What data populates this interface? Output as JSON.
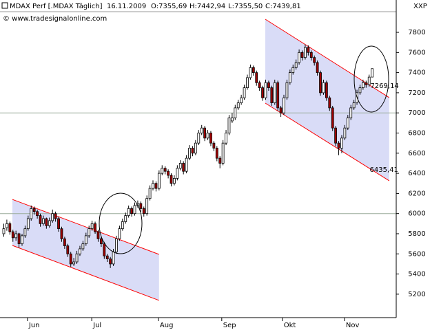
{
  "chart_data": {
    "type": "candlestick",
    "header": {
      "symbol": "MDAX Perf [.MDAX  Täglich]",
      "date": "16.11.2009",
      "open": "O:7355,69",
      "high": "H:7442,94",
      "low": "L:7355,50",
      "close": "C:7439,81"
    },
    "copyright": "© www.tradesignalonline.com",
    "axis_title": "XXP",
    "up_color": "#ffffff",
    "down_color": "#a00000",
    "ohlc_color": "#00a000",
    "xlim": [
      -1.13,
      129
    ],
    "ylim": [
      4967,
      8005
    ],
    "xticks": [
      {
        "value": 7.9,
        "label": "Jun"
      },
      {
        "value": 29,
        "label": "Jul"
      },
      {
        "value": 50.9,
        "label": "Aug"
      },
      {
        "value": 71.7,
        "label": "Sep"
      },
      {
        "value": 91.6,
        "label": "Okt"
      },
      {
        "value": 112,
        "label": "Nov"
      }
    ],
    "yticks": [
      5200,
      5400,
      5600,
      5800,
      6000,
      6200,
      6400,
      6600,
      6800,
      7000,
      7200,
      7400,
      7600,
      7800
    ],
    "hlines": [
      7000,
      6000
    ],
    "channel_fill": "#d9dcf7",
    "channel_line": "#ff0000",
    "channels": [
      {
        "x": [
          2.94,
          51.1
        ],
        "upper": [
          6141,
          5595
        ],
        "lower": [
          5684,
          5138
        ]
      },
      {
        "x": [
          86,
          126.7
        ],
        "upper": [
          7930,
          7152
        ],
        "lower": [
          7097,
          6326
        ]
      }
    ],
    "annotations": [
      {
        "text": "7269,14",
        "x": 120.5,
        "y": 7269.14
      },
      {
        "text": "6435,41",
        "x": 120.3,
        "y": 6435.41
      }
    ],
    "candles": [
      [
        5800,
        5900,
        5770,
        5850
      ],
      [
        5860,
        5940,
        5830,
        5900
      ],
      [
        5900,
        5920,
        5790,
        5820
      ],
      [
        5820,
        5840,
        5720,
        5760
      ],
      [
        5760,
        5830,
        5730,
        5800
      ],
      [
        5800,
        5810,
        5660,
        5700
      ],
      [
        5700,
        5800,
        5680,
        5780
      ],
      [
        5780,
        5880,
        5760,
        5850
      ],
      [
        5850,
        5980,
        5830,
        5950
      ],
      [
        5950,
        6080,
        5930,
        6050
      ],
      [
        6050,
        6070,
        5990,
        6020
      ],
      [
        6020,
        6040,
        5950,
        5980
      ],
      [
        5980,
        6000,
        5870,
        5900
      ],
      [
        5900,
        5980,
        5880,
        5950
      ],
      [
        5950,
        5960,
        5850,
        5880
      ],
      [
        5880,
        5960,
        5860,
        5930
      ],
      [
        5930,
        6040,
        5910,
        6000
      ],
      [
        6000,
        6020,
        5920,
        5950
      ],
      [
        5950,
        5970,
        5820,
        5850
      ],
      [
        5850,
        5870,
        5720,
        5750
      ],
      [
        5750,
        5770,
        5650,
        5680
      ],
      [
        5680,
        5700,
        5570,
        5600
      ],
      [
        5600,
        5620,
        5470,
        5500
      ],
      [
        5500,
        5560,
        5480,
        5520
      ],
      [
        5520,
        5630,
        5500,
        5600
      ],
      [
        5600,
        5680,
        5580,
        5650
      ],
      [
        5650,
        5730,
        5630,
        5700
      ],
      [
        5700,
        5810,
        5680,
        5780
      ],
      [
        5780,
        5880,
        5760,
        5850
      ],
      [
        5850,
        5930,
        5830,
        5900
      ],
      [
        5900,
        5920,
        5800,
        5820
      ],
      [
        5820,
        5840,
        5720,
        5750
      ],
      [
        5750,
        5770,
        5670,
        5700
      ],
      [
        5700,
        5720,
        5550,
        5580
      ],
      [
        5580,
        5600,
        5520,
        5550
      ],
      [
        5550,
        5570,
        5460,
        5500
      ],
      [
        5500,
        5650,
        5480,
        5620
      ],
      [
        5620,
        5780,
        5600,
        5750
      ],
      [
        5750,
        5880,
        5730,
        5850
      ],
      [
        5850,
        5950,
        5830,
        5920
      ],
      [
        5920,
        6010,
        5900,
        5980
      ],
      [
        5980,
        6080,
        5960,
        6050
      ],
      [
        6050,
        6070,
        5970,
        6000
      ],
      [
        6000,
        6110,
        5980,
        6080
      ],
      [
        6080,
        6130,
        6060,
        6100
      ],
      [
        6100,
        6120,
        6020,
        6050
      ],
      [
        6050,
        6070,
        5970,
        6000
      ],
      [
        6000,
        6180,
        5980,
        6150
      ],
      [
        6150,
        6280,
        6130,
        6250
      ],
      [
        6250,
        6330,
        6230,
        6300
      ],
      [
        6300,
        6320,
        6220,
        6250
      ],
      [
        6250,
        6430,
        6230,
        6400
      ],
      [
        6400,
        6480,
        6380,
        6450
      ],
      [
        6450,
        6470,
        6390,
        6420
      ],
      [
        6420,
        6440,
        6350,
        6380
      ],
      [
        6380,
        6400,
        6270,
        6300
      ],
      [
        6300,
        6380,
        6280,
        6350
      ],
      [
        6350,
        6480,
        6330,
        6450
      ],
      [
        6450,
        6530,
        6430,
        6500
      ],
      [
        6500,
        6520,
        6390,
        6420
      ],
      [
        6420,
        6580,
        6400,
        6550
      ],
      [
        6550,
        6680,
        6530,
        6650
      ],
      [
        6650,
        6670,
        6570,
        6600
      ],
      [
        6600,
        6730,
        6580,
        6700
      ],
      [
        6700,
        6830,
        6680,
        6800
      ],
      [
        6800,
        6880,
        6780,
        6850
      ],
      [
        6850,
        6870,
        6720,
        6750
      ],
      [
        6750,
        6830,
        6730,
        6800
      ],
      [
        6800,
        6820,
        6670,
        6700
      ],
      [
        6700,
        6720,
        6620,
        6650
      ],
      [
        6650,
        6670,
        6520,
        6550
      ],
      [
        6550,
        6570,
        6450,
        6500
      ],
      [
        6500,
        6730,
        6480,
        6700
      ],
      [
        6700,
        6830,
        6680,
        6800
      ],
      [
        6800,
        6980,
        6780,
        6950
      ],
      [
        6920,
        7000,
        6900,
        6950
      ],
      [
        6950,
        7080,
        6930,
        7050
      ],
      [
        7050,
        7130,
        7030,
        7100
      ],
      [
        7100,
        7180,
        7080,
        7150
      ],
      [
        7150,
        7280,
        7130,
        7250
      ],
      [
        7250,
        7380,
        7230,
        7350
      ],
      [
        7350,
        7480,
        7330,
        7450
      ],
      [
        7450,
        7470,
        7370,
        7400
      ],
      [
        7400,
        7420,
        7270,
        7300
      ],
      [
        7300,
        7320,
        7220,
        7250
      ],
      [
        7250,
        7270,
        7120,
        7150
      ],
      [
        7150,
        7330,
        7130,
        7300
      ],
      [
        7300,
        7320,
        7220,
        7250
      ],
      [
        7250,
        7270,
        7070,
        7100
      ],
      [
        7100,
        7330,
        7080,
        7300
      ],
      [
        7300,
        7320,
        7020,
        7050
      ],
      [
        7050,
        7070,
        6960,
        7000
      ],
      [
        7000,
        7180,
        6980,
        7150
      ],
      [
        7150,
        7330,
        7130,
        7300
      ],
      [
        7300,
        7430,
        7280,
        7400
      ],
      [
        7400,
        7480,
        7380,
        7450
      ],
      [
        7450,
        7530,
        7430,
        7500
      ],
      [
        7500,
        7630,
        7480,
        7600
      ],
      [
        7600,
        7620,
        7520,
        7550
      ],
      [
        7550,
        7680,
        7530,
        7650
      ],
      [
        7650,
        7670,
        7570,
        7600
      ],
      [
        7600,
        7620,
        7520,
        7550
      ],
      [
        7550,
        7570,
        7470,
        7500
      ],
      [
        7500,
        7520,
        7370,
        7400
      ],
      [
        7400,
        7420,
        7170,
        7200
      ],
      [
        7200,
        7330,
        7180,
        7300
      ],
      [
        7300,
        7320,
        7120,
        7150
      ],
      [
        7150,
        7170,
        7020,
        7050
      ],
      [
        7050,
        7070,
        6820,
        6850
      ],
      [
        6850,
        6870,
        6670,
        6700
      ],
      [
        6700,
        6720,
        6580,
        6650
      ],
      [
        6650,
        6780,
        6600,
        6750
      ],
      [
        6750,
        6880,
        6730,
        6850
      ],
      [
        6850,
        6980,
        6830,
        6950
      ],
      [
        6950,
        7080,
        6930,
        7050
      ],
      [
        7050,
        7130,
        7030,
        7100
      ],
      [
        7100,
        7230,
        7080,
        7200
      ],
      [
        7200,
        7280,
        7180,
        7250
      ],
      [
        7250,
        7330,
        7230,
        7300
      ],
      [
        7300,
        7320,
        7250,
        7280
      ],
      [
        7280,
        7380,
        7260,
        7355.5
      ],
      [
        7355.69,
        7442.94,
        7355.5,
        7439.81
      ]
    ]
  }
}
